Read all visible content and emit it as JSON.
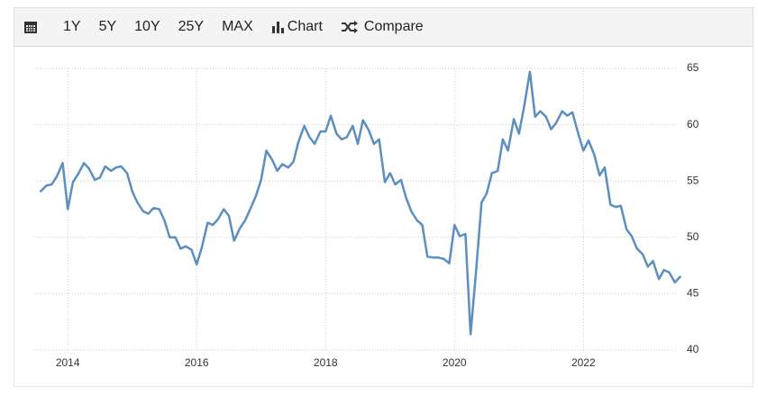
{
  "toolbar": {
    "ranges": [
      "1Y",
      "5Y",
      "10Y",
      "25Y",
      "MAX"
    ],
    "chart": "Chart",
    "compare": "Compare"
  },
  "chart_data": {
    "type": "line",
    "color": "#5b8fc0",
    "grid": true,
    "xlim": [
      2013.48,
      2023.52
    ],
    "xticks": [
      2014,
      2016,
      2018,
      2020,
      2022
    ],
    "ylim": [
      40,
      65
    ],
    "yticks": [
      40,
      45,
      50,
      55,
      60,
      65
    ],
    "x": [
      2013.58,
      2013.67,
      2013.75,
      2013.83,
      2013.92,
      2014.0,
      2014.08,
      2014.17,
      2014.25,
      2014.33,
      2014.42,
      2014.5,
      2014.58,
      2014.67,
      2014.75,
      2014.83,
      2014.92,
      2015.0,
      2015.08,
      2015.17,
      2015.25,
      2015.33,
      2015.42,
      2015.5,
      2015.58,
      2015.67,
      2015.75,
      2015.83,
      2015.92,
      2016.0,
      2016.08,
      2016.17,
      2016.25,
      2016.33,
      2016.42,
      2016.5,
      2016.58,
      2016.67,
      2016.75,
      2016.83,
      2016.92,
      2017.0,
      2017.08,
      2017.17,
      2017.25,
      2017.33,
      2017.42,
      2017.5,
      2017.58,
      2017.67,
      2017.75,
      2017.83,
      2017.92,
      2018.0,
      2018.08,
      2018.17,
      2018.25,
      2018.33,
      2018.42,
      2018.5,
      2018.58,
      2018.67,
      2018.75,
      2018.83,
      2018.92,
      2019.0,
      2019.08,
      2019.17,
      2019.25,
      2019.33,
      2019.42,
      2019.5,
      2019.58,
      2019.67,
      2019.75,
      2019.83,
      2019.92,
      2020.0,
      2020.08,
      2020.17,
      2020.25,
      2020.33,
      2020.42,
      2020.5,
      2020.58,
      2020.67,
      2020.75,
      2020.83,
      2020.92,
      2021.0,
      2021.08,
      2021.17,
      2021.25,
      2021.33,
      2021.42,
      2021.5,
      2021.58,
      2021.67,
      2021.75,
      2021.83,
      2021.92,
      2022.0,
      2022.08,
      2022.17,
      2022.25,
      2022.33,
      2022.42,
      2022.5,
      2022.58,
      2022.67,
      2022.75,
      2022.83,
      2022.92,
      2023.0,
      2023.08,
      2023.17,
      2023.25,
      2023.33,
      2023.42,
      2023.5
    ],
    "values": [
      54.1,
      54.6,
      54.7,
      55.4,
      56.6,
      52.5,
      54.9,
      55.7,
      56.6,
      56.1,
      55.1,
      55.3,
      56.3,
      55.9,
      56.2,
      56.3,
      55.7,
      54.1,
      53.1,
      52.3,
      52.1,
      52.6,
      52.5,
      51.5,
      50.0,
      50.0,
      49.0,
      49.2,
      48.9,
      47.6,
      49.1,
      51.3,
      51.1,
      51.6,
      52.5,
      51.9,
      49.7,
      50.8,
      51.5,
      52.5,
      53.7,
      55.1,
      57.7,
      56.9,
      55.9,
      56.5,
      56.2,
      56.7,
      58.5,
      59.9,
      58.9,
      58.3,
      59.4,
      59.4,
      60.8,
      59.2,
      58.7,
      58.9,
      59.9,
      58.3,
      60.4,
      59.5,
      58.3,
      58.7,
      54.9,
      55.7,
      54.7,
      55.1,
      53.5,
      52.3,
      51.5,
      51.1,
      48.3,
      48.2,
      48.2,
      48.1,
      47.7,
      51.1,
      50.1,
      50.3,
      41.4,
      46.7,
      53.1,
      53.9,
      55.7,
      55.9,
      58.7,
      57.7,
      60.5,
      59.2,
      61.6,
      64.7,
      60.7,
      61.2,
      60.7,
      59.6,
      60.2,
      61.2,
      60.8,
      61.1,
      59.2,
      57.7,
      58.6,
      57.3,
      55.5,
      56.2,
      52.9,
      52.7,
      52.8,
      50.7,
      50.1,
      49.0,
      48.5,
      47.4,
      47.9,
      46.3,
      47.1,
      46.9,
      46.0,
      46.5
    ]
  }
}
